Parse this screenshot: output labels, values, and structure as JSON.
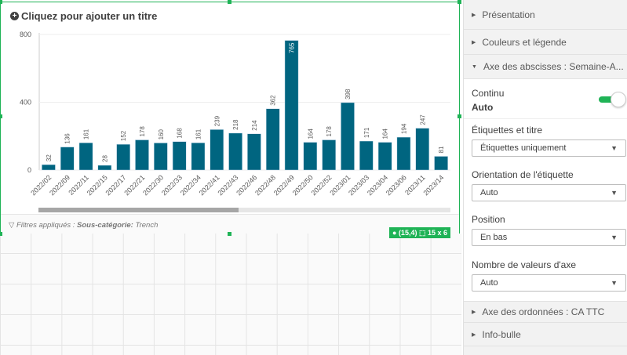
{
  "title": "Cliquez pour ajouter un titre",
  "chart_data": {
    "type": "bar",
    "categories": [
      "2022/02",
      "2022/09",
      "2022/11",
      "2022/15",
      "2022/17",
      "2022/21",
      "2022/30",
      "2022/33",
      "2022/34",
      "2022/41",
      "2022/43",
      "2022/46",
      "2022/48",
      "2022/49",
      "2022/50",
      "2022/52",
      "2023/01",
      "2023/03",
      "2023/04",
      "2023/06",
      "2023/11",
      "2023/14"
    ],
    "values": [
      32,
      136,
      161,
      28,
      152,
      178,
      160,
      168,
      161,
      239,
      218,
      214,
      362,
      765,
      164,
      178,
      398,
      171,
      164,
      194,
      247,
      81
    ],
    "ylim": [
      0,
      800
    ],
    "yticks": [
      "0",
      "400",
      "800"
    ],
    "grid": true,
    "bar_color": "#006580"
  },
  "footer": {
    "label": "Filtres appliqués :",
    "field": "Sous-catégorie:",
    "value": "Trench"
  },
  "badge": {
    "position": "(15,4)",
    "size": "15 x 6"
  },
  "panel": {
    "sections": [
      "Présentation",
      "Couleurs et légende",
      "Axe des abscisses : Semaine-A..."
    ],
    "continu_label": "Continu",
    "continu_value": "Auto",
    "continu_on": true,
    "labels_title": "Étiquettes et titre",
    "labels_value": "Étiquettes uniquement",
    "orientation_title": "Orientation de l'étiquette",
    "orientation_value": "Auto",
    "position_title": "Position",
    "position_value": "En bas",
    "count_title": "Nombre de valeurs d'axe",
    "count_value": "Auto",
    "bottom_sections": [
      "Axe des ordonnées : CA TTC",
      "Info-bulle"
    ]
  },
  "accent": "#1fb356"
}
